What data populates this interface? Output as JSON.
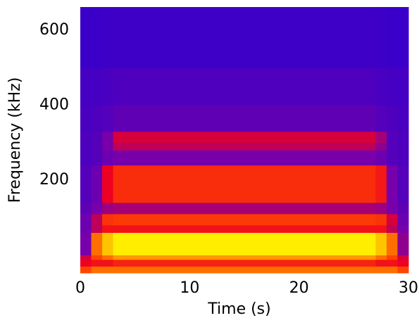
{
  "chart_data": {
    "type": "heatmap",
    "xlabel": "Time (s)",
    "ylabel": "Frequency (kHz)",
    "xlim": [
      0,
      30
    ],
    "xticks": [
      0,
      10,
      20,
      30
    ],
    "ylim": [
      -48,
      662
    ],
    "yticks": [
      200,
      400,
      600
    ],
    "xbins": [
      0,
      1,
      2,
      3,
      4,
      26,
      27,
      28,
      29,
      30
    ],
    "ybins": [
      -48,
      -30,
      -12,
      0,
      60,
      80,
      110,
      140,
      240,
      280,
      300,
      330,
      400,
      500,
      662
    ],
    "values": [
      [
        0.75,
        0.8,
        0.8,
        0.8,
        0.8,
        0.8,
        0.8,
        0.8,
        0.75
      ],
      [
        0.55,
        0.6,
        0.6,
        0.65,
        0.65,
        0.65,
        0.6,
        0.6,
        0.55
      ],
      [
        0.5,
        0.75,
        0.8,
        0.85,
        0.85,
        0.85,
        0.8,
        0.75,
        0.5
      ],
      [
        0.3,
        0.8,
        0.9,
        0.95,
        0.95,
        0.95,
        0.9,
        0.8,
        0.35
      ],
      [
        0.25,
        0.45,
        0.6,
        0.6,
        0.6,
        0.6,
        0.6,
        0.45,
        0.3
      ],
      [
        0.25,
        0.45,
        0.7,
        0.72,
        0.72,
        0.72,
        0.7,
        0.5,
        0.25
      ],
      [
        0.2,
        0.3,
        0.38,
        0.4,
        0.4,
        0.4,
        0.38,
        0.3,
        0.2
      ],
      [
        0.15,
        0.25,
        0.55,
        0.68,
        0.68,
        0.68,
        0.62,
        0.3,
        0.15
      ],
      [
        0.12,
        0.15,
        0.25,
        0.3,
        0.3,
        0.3,
        0.25,
        0.15,
        0.12
      ],
      [
        0.12,
        0.15,
        0.3,
        0.45,
        0.45,
        0.45,
        0.35,
        0.15,
        0.12
      ],
      [
        0.12,
        0.15,
        0.3,
        0.5,
        0.5,
        0.5,
        0.4,
        0.15,
        0.12
      ],
      [
        0.1,
        0.12,
        0.15,
        0.2,
        0.2,
        0.2,
        0.15,
        0.12,
        0.1
      ],
      [
        0.08,
        0.08,
        0.1,
        0.12,
        0.12,
        0.12,
        0.1,
        0.08,
        0.08
      ],
      [
        0.03,
        0.03,
        0.04,
        0.05,
        0.05,
        0.05,
        0.04,
        0.03,
        0.03
      ]
    ],
    "colormap": [
      "#3300cc",
      "#7700aa",
      "#ee0022",
      "#ff4400",
      "#ffee00",
      "#ffff66"
    ],
    "colormap_stops": [
      0,
      0.3,
      0.55,
      0.75,
      0.95,
      1
    ]
  }
}
